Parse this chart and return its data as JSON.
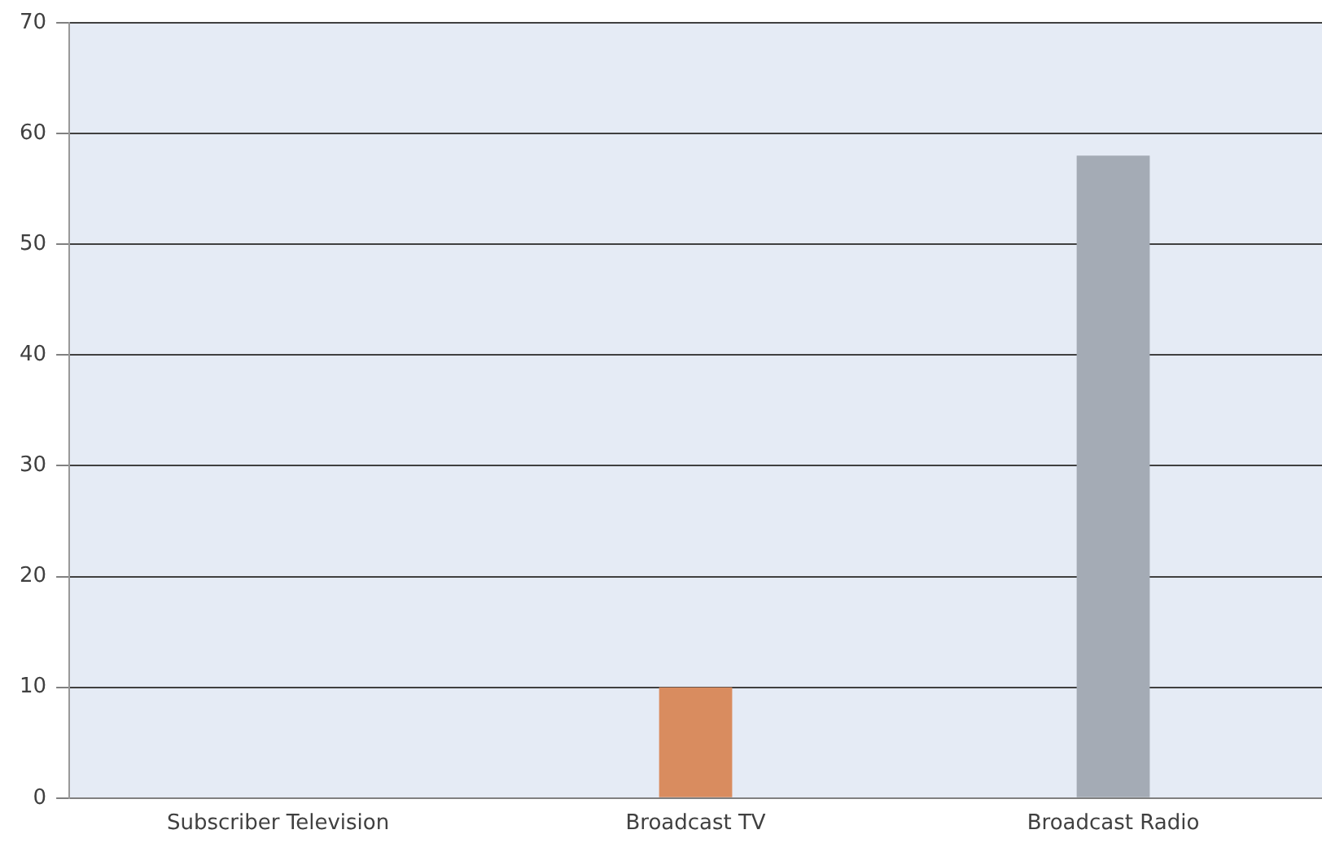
{
  "chart_data": {
    "type": "bar",
    "categories": [
      "Subscriber Television",
      "Broadcast TV",
      "Broadcast Radio"
    ],
    "values": [
      0,
      10,
      58
    ],
    "colors": [
      "#4f81bd",
      "#d98c5f",
      "#a4abb5"
    ],
    "ylim": [
      0,
      70
    ],
    "yticks": [
      0,
      10,
      20,
      30,
      40,
      50,
      60,
      70
    ],
    "grid": "y"
  }
}
